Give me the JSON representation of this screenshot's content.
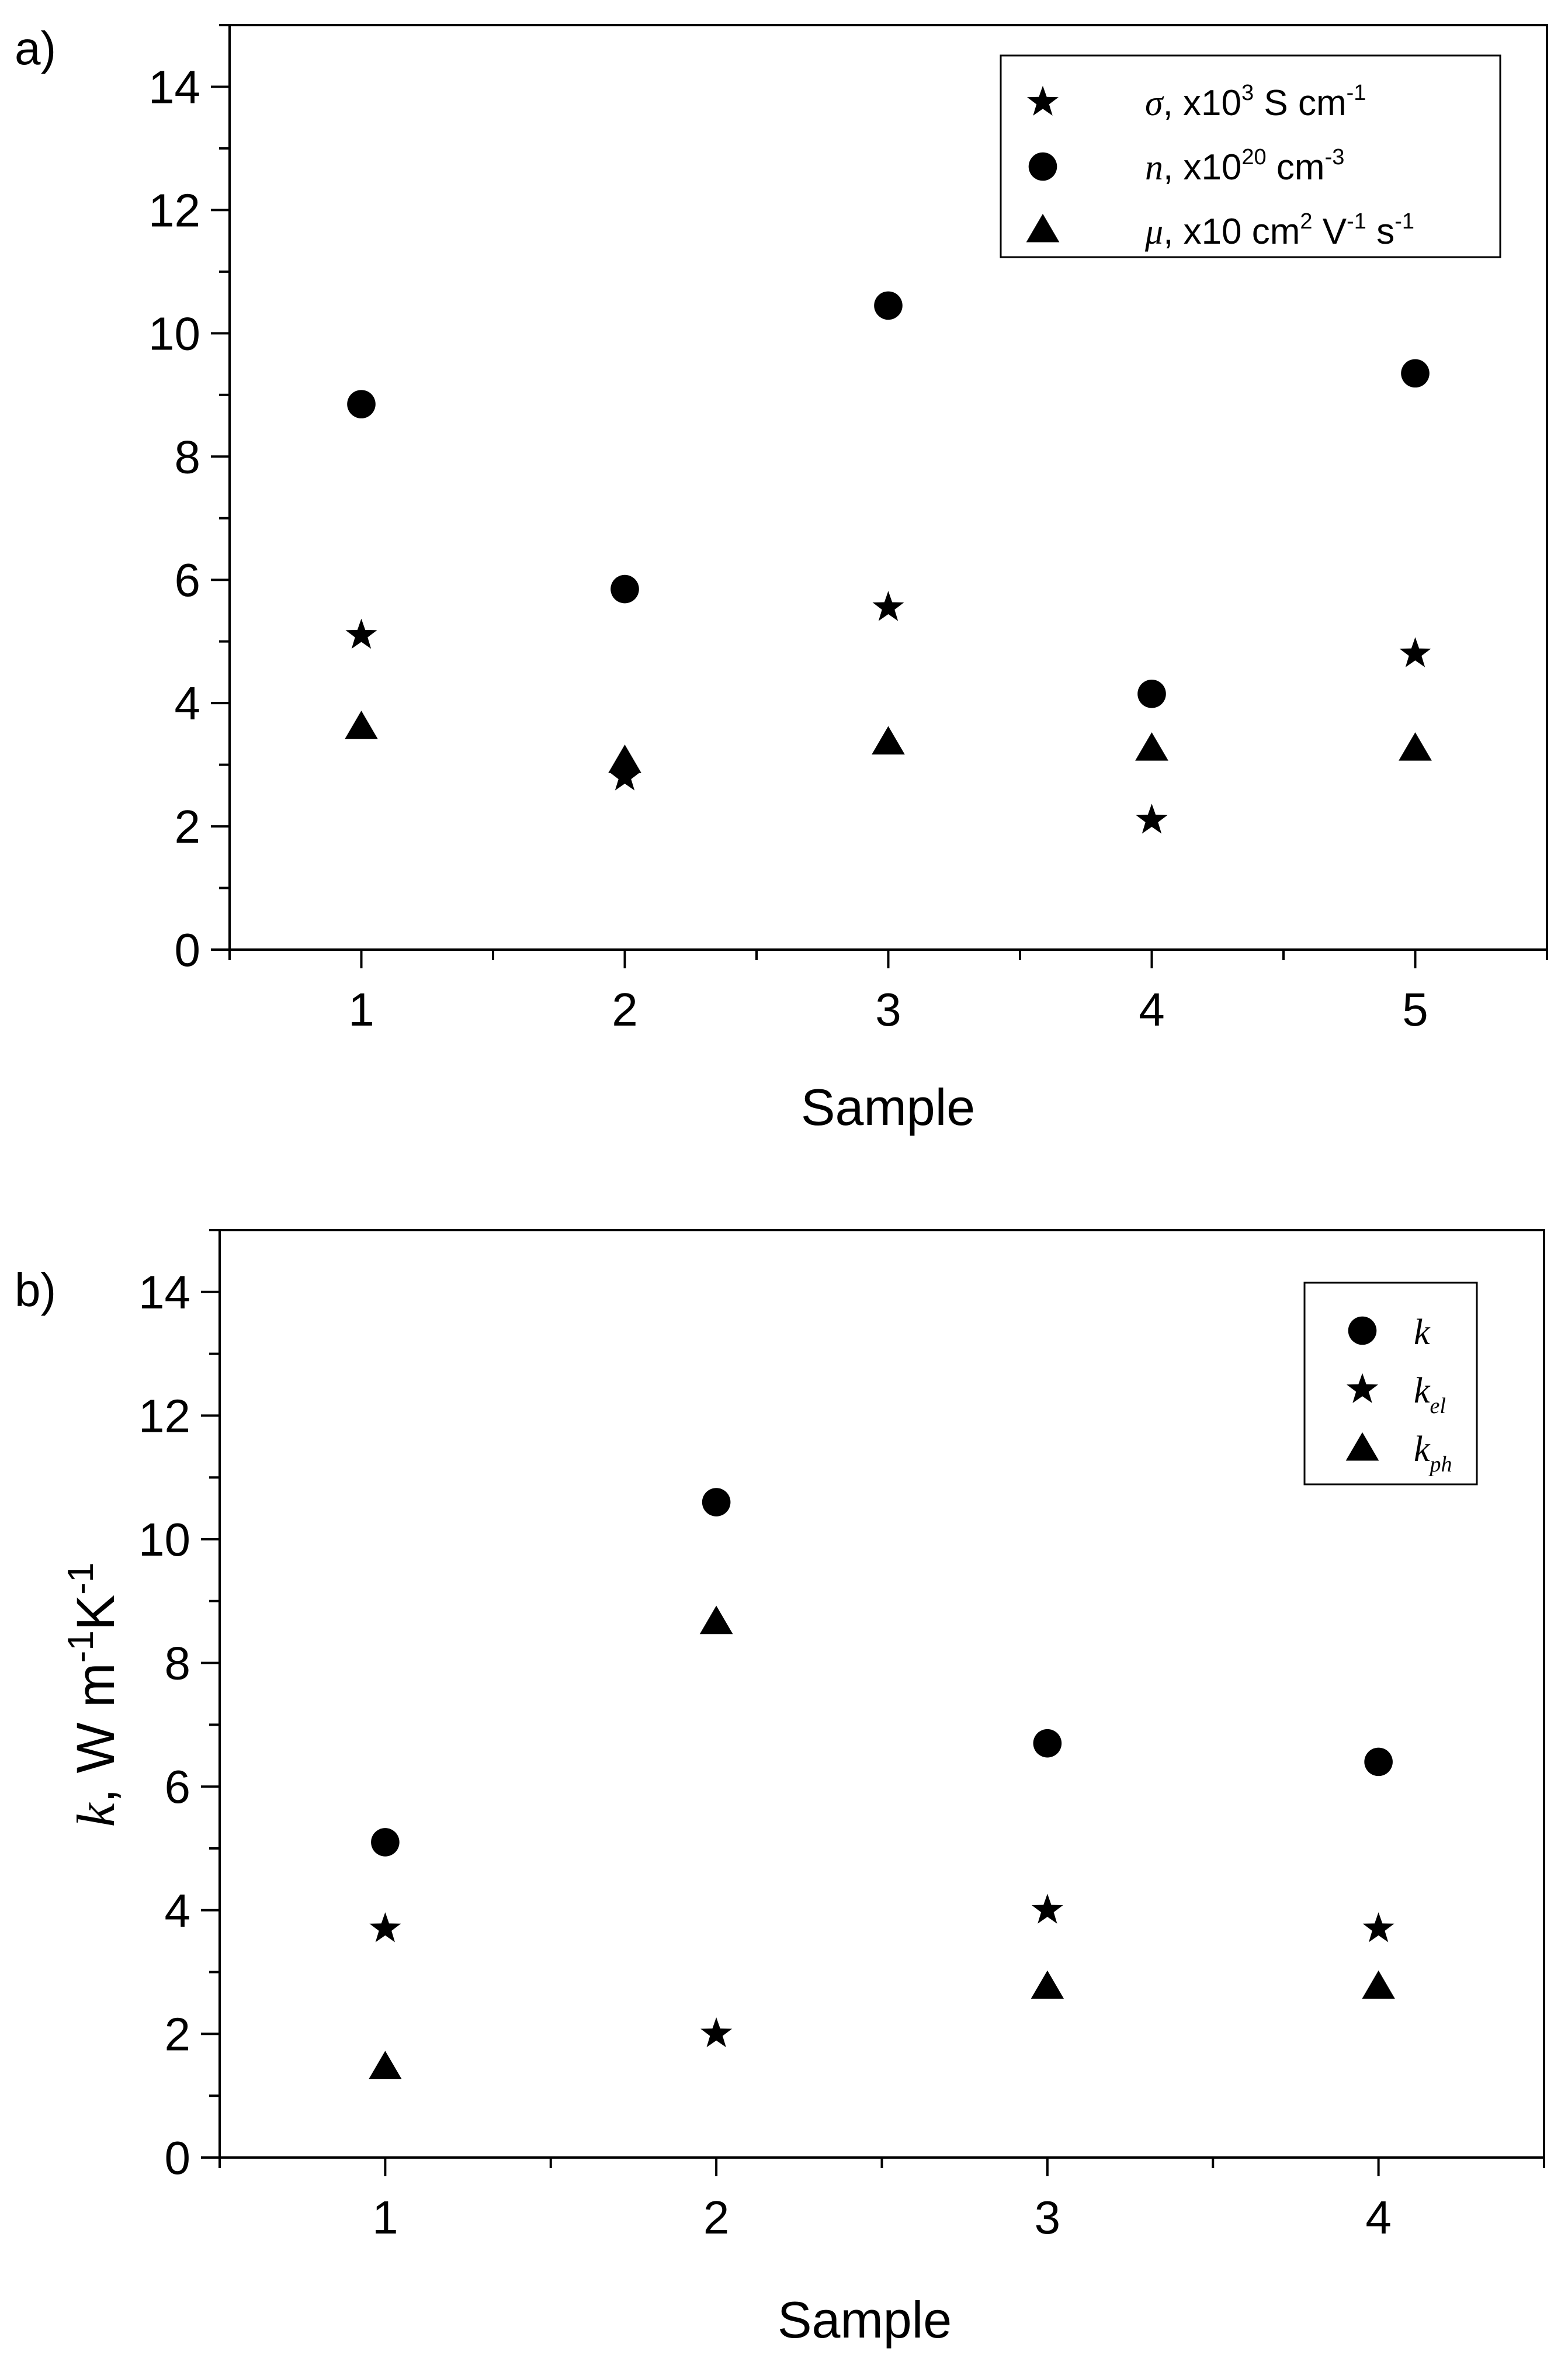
{
  "chart_data": [
    {
      "type": "scatter",
      "panel_label": "a)",
      "xlabel": "Sample",
      "ylabel": "",
      "x_ticks": [
        1,
        2,
        3,
        4,
        5
      ],
      "y_ticks": [
        0,
        2,
        4,
        6,
        8,
        10,
        12,
        14
      ],
      "xlim": [
        0.5,
        5.5
      ],
      "ylim": [
        0,
        15
      ],
      "legend_position": "top-right",
      "series": [
        {
          "key": "sigma",
          "marker": "star",
          "legend": {
            "symbol": "σ",
            "text": ", x10",
            "sup": "3",
            "unit": " S cm",
            "unit_sup": "-1",
            "tail": "",
            "tail_sup": ""
          },
          "x": [
            1,
            2,
            3,
            4,
            5
          ],
          "y": [
            5.1,
            2.8,
            5.55,
            2.1,
            4.8
          ]
        },
        {
          "key": "n",
          "marker": "circle",
          "legend": {
            "symbol": "n",
            "text": ", x10",
            "sup": "20",
            "unit": " cm",
            "unit_sup": "-3",
            "tail": "",
            "tail_sup": ""
          },
          "x": [
            1,
            2,
            3,
            4,
            5
          ],
          "y": [
            8.85,
            5.85,
            10.45,
            4.15,
            9.35
          ]
        },
        {
          "key": "mu",
          "marker": "triangle",
          "legend": {
            "symbol": "μ",
            "text": ", x10 cm",
            "sup": "2",
            "unit": " V",
            "unit_sup": "-1",
            "tail": " s",
            "tail_sup": "-1"
          },
          "x": [
            1,
            2,
            3,
            4,
            5
          ],
          "y": [
            3.6,
            3.05,
            3.35,
            3.25,
            3.25
          ]
        }
      ]
    },
    {
      "type": "scatter",
      "panel_label": "b)",
      "xlabel": "Sample",
      "ylabel": {
        "symbol": "k",
        "text": ", W m",
        "sup1": "-1",
        "mid": "K",
        "sup2": "-1"
      },
      "x_ticks": [
        1,
        2,
        3,
        4
      ],
      "y_ticks": [
        0,
        2,
        4,
        6,
        8,
        10,
        12,
        14
      ],
      "xlim": [
        0.5,
        4.5
      ],
      "ylim": [
        0,
        15
      ],
      "legend_position": "top-right",
      "series": [
        {
          "key": "k",
          "marker": "circle",
          "legend": {
            "symbol": "k",
            "sub": ""
          },
          "x": [
            1,
            2,
            3,
            4
          ],
          "y": [
            5.1,
            10.6,
            6.7,
            6.4
          ]
        },
        {
          "key": "k_el",
          "marker": "star",
          "legend": {
            "symbol": "k",
            "sub": "el"
          },
          "x": [
            1,
            2,
            3,
            4
          ],
          "y": [
            3.7,
            2.0,
            4.0,
            3.7
          ]
        },
        {
          "key": "k_ph",
          "marker": "triangle",
          "legend": {
            "symbol": "k",
            "sub": "ph"
          },
          "x": [
            1,
            2,
            3,
            4
          ],
          "y": [
            1.45,
            8.65,
            2.75,
            2.75
          ]
        }
      ]
    }
  ]
}
